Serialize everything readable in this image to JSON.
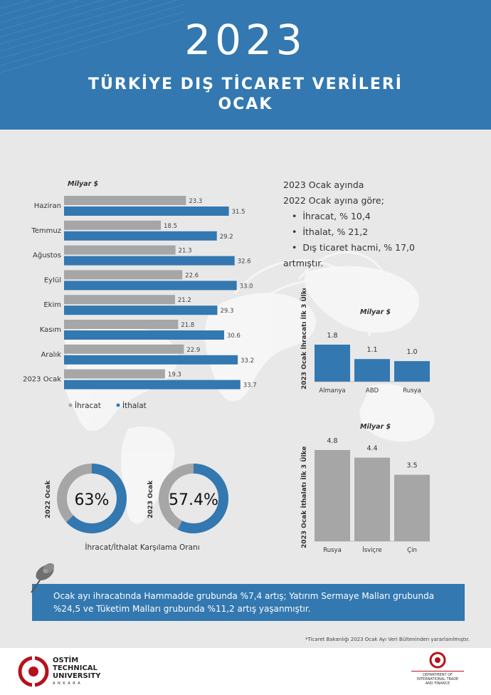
{
  "header": {
    "year": "2023",
    "title_line1": "TÜRKİYE DIŞ TİCARET VERİLERİ",
    "title_line2": "OCAK"
  },
  "summary": {
    "line1": "2023 Ocak ayında",
    "line2": "2022  Ocak ayına göre;",
    "bullets": [
      "İhracat, % 10,4",
      "İthalat, % 21,2",
      "Dış ticaret hacmi, % 17,0"
    ],
    "line3": "artmıştır."
  },
  "chart_data": [
    {
      "type": "bar",
      "orientation": "horizontal",
      "unit_label": "Milyar $",
      "categories": [
        "Haziran",
        "Temmuz",
        "Ağustos",
        "Eylül",
        "Ekim",
        "Kasım",
        "Aralık",
        "2023 Ocak"
      ],
      "series": [
        {
          "name": "İhracat",
          "color": "#a6a6a6",
          "values": [
            23.3,
            18.5,
            21.3,
            22.6,
            21.2,
            21.8,
            22.9,
            19.3
          ]
        },
        {
          "name": "İthalat",
          "color": "#3378b0",
          "values": [
            31.5,
            29.2,
            32.6,
            33.0,
            29.3,
            30.6,
            33.2,
            33.7
          ]
        }
      ],
      "value_labels": [
        [
          "23.3",
          "18.5",
          "21.3",
          "22.6",
          "21.2",
          "21.8",
          "22.9",
          "19.3"
        ],
        [
          "31.5",
          "29.2",
          "32.6",
          "33.0",
          "29.3",
          "30.6",
          "33.2",
          "33.7"
        ]
      ],
      "xlim": [
        0,
        34
      ],
      "legend": "bottom-left"
    },
    {
      "type": "bar",
      "title": "2023 Ocak İhracatı İlk 3 Ülke",
      "unit_label": "Milyar $",
      "categories": [
        "Almanya",
        "ABD",
        "Rusya"
      ],
      "values": [
        1.8,
        1.1,
        1.0
      ],
      "value_labels": [
        "1.8",
        "1.1",
        "1.0"
      ],
      "color": "#3378b0",
      "ylim": [
        0,
        1.8
      ]
    },
    {
      "type": "bar",
      "title": "2023 Ocak İthalatı İlk 3 Ülke",
      "unit_label": "Milyar $",
      "categories": [
        "Rusya",
        "İsviçre",
        "Çin"
      ],
      "values": [
        4.8,
        4.4,
        3.5
      ],
      "value_labels": [
        "4.8",
        "4.4",
        "3.5"
      ],
      "color": "#a6a6a6",
      "ylim": [
        0,
        4.8
      ]
    },
    {
      "type": "pie",
      "subtype": "donut",
      "caption": "İhracat/İthalat Karşılama Oranı",
      "items": [
        {
          "label": "2022 Ocak",
          "value": 63,
          "value_label": "63%"
        },
        {
          "label": "2023 Ocak",
          "value": 57.4,
          "value_label": "57.4%"
        }
      ],
      "colors": {
        "filled": "#3378b0",
        "rest": "#a6a6a6"
      }
    }
  ],
  "banner": {
    "text": "Ocak ayı ihracatında Hammadde grubunda %7,4 artış; Yatırım Sermaye Malları grubunda %24,5  ve Tüketim Malları grubunda %11,2 artış yaşanmıştır."
  },
  "source_note": "*Ticaret Bakanlığı 2023 Ocak Ayı Veri Bülteninden yararlanılmıştır.",
  "footer": {
    "left_logo": {
      "line1": "OSTİM",
      "line2": "TECHNICAL",
      "line3": "UNIVERSITY",
      "line4": "A N K A R A"
    },
    "right_logo": {
      "line1": "DEPARTMENT OF",
      "line2": "INTERNATIONAL TRADE",
      "line3": "AND FINANCE"
    }
  }
}
